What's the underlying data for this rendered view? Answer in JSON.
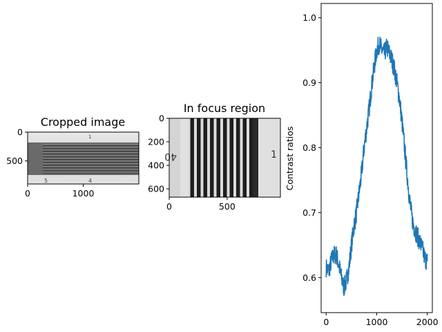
{
  "chart_data": [
    {
      "type": "image",
      "title": "Cropped image",
      "xlim": [
        0,
        2000
      ],
      "ylim": [
        900,
        0
      ],
      "xticks": [
        "0",
        "1000"
      ],
      "yticks": [
        "0",
        "500"
      ],
      "xtick_values": [
        0,
        1000
      ],
      "ytick_values": [
        0,
        500
      ]
    },
    {
      "type": "image",
      "title": "In focus region",
      "xlim": [
        0,
        960
      ],
      "ylim": [
        670,
        0
      ],
      "xticks": [
        "0",
        "500"
      ],
      "yticks": [
        "0",
        "200",
        "400",
        "600"
      ],
      "xtick_values": [
        0,
        500
      ],
      "ytick_values": [
        0,
        200,
        400,
        600
      ]
    },
    {
      "type": "line",
      "title": "",
      "xlabel": "",
      "ylabel": "Contrast ratios",
      "xlim": [
        -100,
        2100
      ],
      "ylim": [
        0.546,
        1.022
      ],
      "xticks": [
        "0",
        "1000",
        "2000"
      ],
      "yticks": [
        "0.6",
        "0.7",
        "0.8",
        "0.9",
        "1.0"
      ],
      "xtick_values": [
        0,
        1000,
        2000
      ],
      "ytick_values": [
        0.6,
        0.7,
        0.8,
        0.9,
        1.0
      ],
      "color": "#1f77b4",
      "series": [
        {
          "x": [
            0,
            50,
            100,
            150,
            200,
            250,
            300,
            350,
            400,
            450,
            500,
            550,
            600,
            650,
            700,
            750,
            800,
            850,
            900,
            950,
            1000,
            1050,
            1100,
            1150,
            1200,
            1250,
            1300,
            1350,
            1400,
            1450,
            1500,
            1550,
            1600,
            1650,
            1700,
            1750,
            1800,
            1850,
            1900,
            1950,
            2000
          ],
          "y": [
            0.615,
            0.61,
            0.625,
            0.635,
            0.635,
            0.62,
            0.6,
            0.585,
            0.595,
            0.615,
            0.65,
            0.68,
            0.7,
            0.73,
            0.76,
            0.8,
            0.83,
            0.86,
            0.895,
            0.925,
            0.95,
            0.96,
            0.95,
            0.945,
            0.955,
            0.945,
            0.935,
            0.92,
            0.9,
            0.875,
            0.84,
            0.8,
            0.76,
            0.72,
            0.69,
            0.675,
            0.665,
            0.655,
            0.645,
            0.63,
            0.625
          ]
        }
      ]
    }
  ]
}
